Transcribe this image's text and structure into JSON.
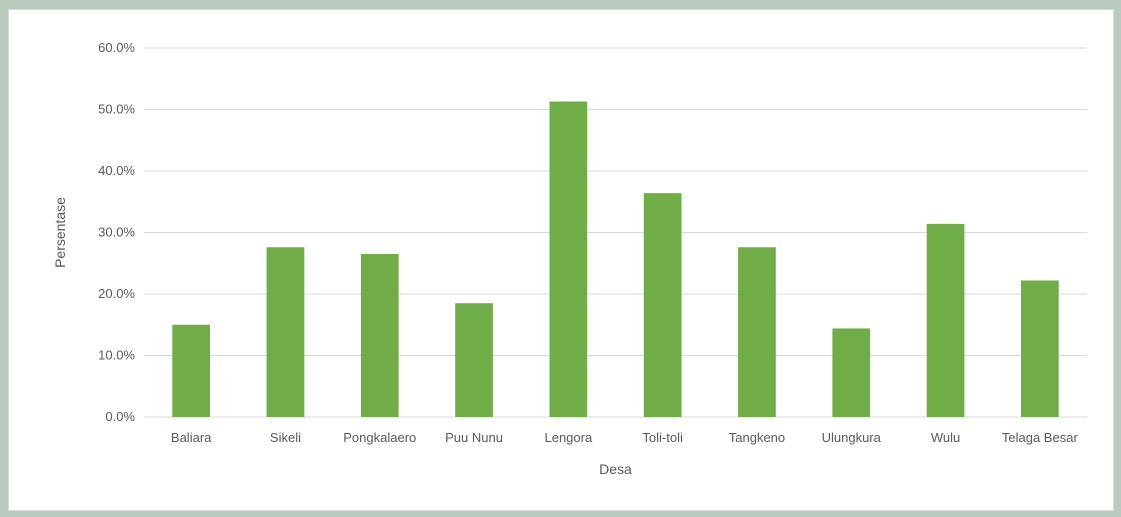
{
  "chart_data": {
    "type": "bar",
    "title": "",
    "xlabel": "Desa",
    "ylabel": "Persentase",
    "categories": [
      "Baliara",
      "Sikeli",
      "Pongkalaero",
      "Puu Nunu",
      "Lengora",
      "Toli-toli",
      "Tangkeno",
      "Ulungkura",
      "Wulu",
      "Telaga Besar"
    ],
    "values": [
      15.0,
      27.6,
      26.5,
      18.5,
      51.3,
      36.4,
      27.6,
      14.4,
      31.4,
      22.2
    ],
    "ylim": [
      0,
      60
    ],
    "yticks": [
      0,
      10,
      20,
      30,
      40,
      50,
      60
    ],
    "ytick_labels": [
      "0.0%",
      "10.0%",
      "20.0%",
      "30.0%",
      "40.0%",
      "50.0%",
      "60.0%"
    ],
    "grid": true,
    "legend": "none",
    "colors": {
      "bar": "#70ad47",
      "grid": "#d9d9d9",
      "text": "#595959",
      "background": "#b9cbbf"
    }
  }
}
